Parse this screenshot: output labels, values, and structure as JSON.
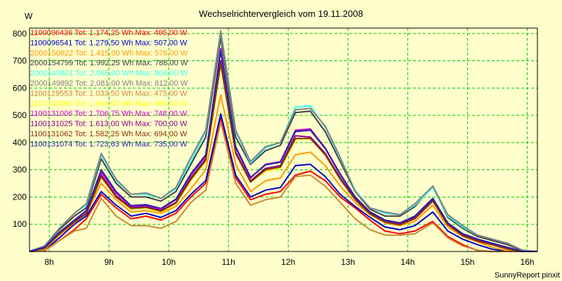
{
  "chart_data": {
    "type": "line",
    "title": "Wechselrichtervergleich vom 19.11.2008",
    "ylabel": "W",
    "xlabel": "",
    "footer": "SunnyReport pinxit",
    "xlim": [
      7.67,
      16.17
    ],
    "ylim": [
      0,
      820
    ],
    "yticks": [
      100,
      200,
      300,
      400,
      500,
      600,
      700,
      800
    ],
    "xticks": [
      8,
      9,
      10,
      11,
      12,
      13,
      14,
      15,
      16
    ],
    "xtick_labels": [
      "8h",
      "9h",
      "10h",
      "11h",
      "12h",
      "13h",
      "14h",
      "15h",
      "16h"
    ],
    "grid": true,
    "legend_position": "top-left",
    "x": [
      7.67,
      7.92,
      8.17,
      8.42,
      8.62,
      8.87,
      9.12,
      9.37,
      9.62,
      9.87,
      10.12,
      10.37,
      10.62,
      10.87,
      11.12,
      11.37,
      11.62,
      11.87,
      12.12,
      12.37,
      12.62,
      12.87,
      13.12,
      13.37,
      13.62,
      13.87,
      14.12,
      14.42,
      14.67,
      14.92,
      15.17,
      15.42,
      15.67,
      15.92,
      16.17
    ],
    "series": [
      {
        "name": "1100096436 Tot: 1.174,25 Wh Max: 495,00 W",
        "color": "#ff0000",
        "values": [
          0,
          2,
          40,
          80,
          120,
          210,
          160,
          120,
          130,
          115,
          140,
          200,
          250,
          490,
          270,
          190,
          210,
          220,
          280,
          295,
          260,
          200,
          160,
          115,
          75,
          65,
          75,
          110,
          55,
          25,
          3,
          0,
          0,
          0,
          0
        ]
      },
      {
        "name": "1100096541 Tot: 1.279,50 Wh Max: 507,00 W",
        "color": "#0000cc",
        "values": [
          0,
          5,
          50,
          100,
          130,
          220,
          170,
          130,
          140,
          125,
          150,
          210,
          260,
          505,
          280,
          200,
          225,
          235,
          315,
          320,
          275,
          210,
          165,
          125,
          90,
          80,
          95,
          145,
          75,
          45,
          25,
          8,
          0,
          0,
          0
        ]
      },
      {
        "name": "2000150622 Tot: 1.415,00 Wh Max: 576,00 W",
        "color": "#ff9900",
        "values": [
          0,
          8,
          60,
          105,
          140,
          250,
          190,
          145,
          150,
          140,
          165,
          230,
          300,
          575,
          320,
          220,
          260,
          270,
          355,
          365,
          315,
          240,
          180,
          135,
          105,
          95,
          110,
          170,
          90,
          55,
          35,
          15,
          3,
          0,
          0
        ]
      },
      {
        "name": "2000154799 Tot: 1.992,25 Wh Max: 788,00 W",
        "color": "#404040",
        "values": [
          0,
          20,
          80,
          130,
          160,
          340,
          250,
          200,
          200,
          185,
          220,
          320,
          420,
          785,
          420,
          320,
          370,
          390,
          510,
          515,
          440,
          330,
          220,
          155,
          130,
          130,
          165,
          240,
          125,
          85,
          55,
          40,
          25,
          3,
          0
        ]
      },
      {
        "name": "2000149801 Tot: 2.065,00 Wh Max: 806,00 W",
        "color": "#33ffff",
        "values": [
          0,
          20,
          85,
          140,
          170,
          355,
          260,
          210,
          210,
          195,
          230,
          330,
          440,
          805,
          440,
          325,
          380,
          400,
          530,
          535,
          455,
          340,
          225,
          160,
          140,
          135,
          170,
          235,
          130,
          90,
          60,
          45,
          30,
          5,
          0
        ]
      },
      {
        "name": "2000149892 Tot: 2.081,00 Wh Max: 812,00 W",
        "color": "#808080",
        "values": [
          0,
          20,
          85,
          140,
          175,
          360,
          265,
          210,
          215,
          195,
          235,
          345,
          445,
          810,
          445,
          330,
          385,
          400,
          520,
          525,
          460,
          345,
          220,
          160,
          145,
          135,
          175,
          240,
          135,
          95,
          60,
          45,
          30,
          5,
          0
        ]
      },
      {
        "name": "1100129553 Tot: 1.033,50 Wh Max: 475,00 W",
        "color": "#cc8833",
        "values": [
          0,
          3,
          40,
          75,
          85,
          195,
          130,
          95,
          95,
          85,
          110,
          180,
          225,
          475,
          250,
          170,
          190,
          200,
          275,
          280,
          240,
          180,
          120,
          80,
          60,
          60,
          65,
          105,
          50,
          20,
          5,
          0,
          0,
          0,
          0
        ]
      },
      {
        "name": "1100133090 Tot: 1.694,00 Wh Max: 685,00 W",
        "color": "#ffff00",
        "values": [
          0,
          12,
          65,
          110,
          140,
          270,
          200,
          155,
          160,
          145,
          175,
          260,
          330,
          685,
          360,
          255,
          295,
          305,
          410,
          415,
          355,
          265,
          195,
          140,
          110,
          100,
          125,
          185,
          100,
          60,
          40,
          25,
          10,
          0,
          0
        ]
      },
      {
        "name": "1100131006 Tot: 1.706,75 Wh Max: 748,00 W",
        "color": "#cc00cc",
        "values": [
          0,
          15,
          70,
          115,
          150,
          290,
          215,
          165,
          170,
          155,
          190,
          280,
          350,
          745,
          380,
          270,
          320,
          330,
          445,
          450,
          380,
          285,
          200,
          145,
          115,
          105,
          130,
          195,
          105,
          65,
          45,
          30,
          15,
          0,
          0
        ]
      },
      {
        "name": "1100131025 Tot: 1.613,00 Wh Max: 700,00 W",
        "color": "#880088",
        "values": [
          0,
          12,
          65,
          110,
          140,
          280,
          205,
          160,
          165,
          150,
          180,
          270,
          340,
          700,
          365,
          260,
          305,
          315,
          425,
          420,
          360,
          270,
          195,
          140,
          110,
          100,
          125,
          190,
          100,
          60,
          40,
          25,
          10,
          0,
          0
        ]
      },
      {
        "name": "1100131062 Tot: 1.582,25 Wh Max: 694,00 W",
        "color": "#883300",
        "values": [
          0,
          12,
          65,
          108,
          138,
          275,
          200,
          158,
          162,
          148,
          178,
          265,
          335,
          690,
          360,
          255,
          300,
          310,
          415,
          415,
          355,
          265,
          190,
          138,
          108,
          98,
          120,
          185,
          98,
          58,
          38,
          24,
          9,
          0,
          0
        ]
      },
      {
        "name": "1100131074 Tot: 1.723,63 Wh Max: 735,00 W",
        "color": "#2222aa",
        "values": [
          0,
          15,
          70,
          115,
          148,
          300,
          220,
          168,
          172,
          158,
          192,
          285,
          355,
          735,
          385,
          272,
          318,
          328,
          440,
          445,
          378,
          282,
          200,
          145,
          115,
          105,
          130,
          195,
          105,
          65,
          45,
          30,
          15,
          0,
          0
        ]
      }
    ]
  }
}
